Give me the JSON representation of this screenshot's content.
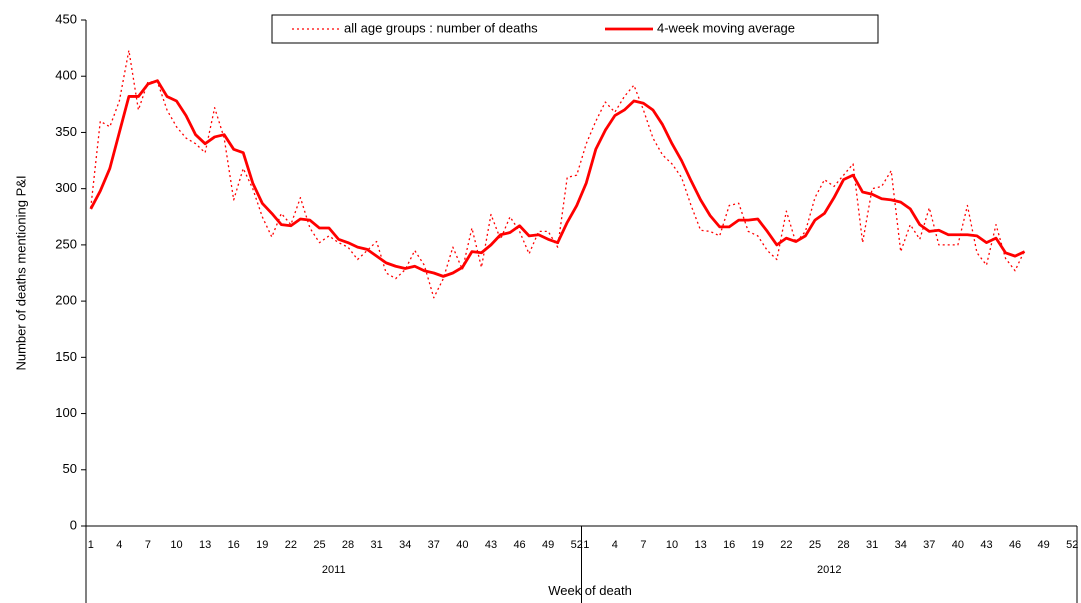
{
  "chart_data": {
    "type": "line",
    "x_label": "Week of death",
    "y_label": "Number of deaths mentioning P&I",
    "ylim": [
      0,
      450
    ],
    "yticks": [
      0,
      50,
      100,
      150,
      200,
      250,
      300,
      350,
      400,
      450
    ],
    "x_groups": [
      "2011",
      "2012"
    ],
    "categories": [
      "1",
      null,
      null,
      "4",
      null,
      null,
      "7",
      null,
      null,
      "10",
      null,
      null,
      "13",
      null,
      null,
      "16",
      null,
      null,
      "19",
      null,
      null,
      "22",
      null,
      null,
      "25",
      null,
      null,
      "28",
      null,
      null,
      "31",
      null,
      null,
      "34",
      null,
      null,
      "37",
      null,
      null,
      "40",
      null,
      null,
      "43",
      null,
      null,
      "46",
      null,
      null,
      "49",
      null,
      null,
      "52",
      "1",
      null,
      null,
      "4",
      null,
      null,
      "7",
      null,
      null,
      "10",
      null,
      null,
      "13",
      null,
      null,
      "16",
      null,
      null,
      "19",
      null,
      null,
      "22",
      null,
      null,
      "25",
      null,
      null,
      "28",
      null,
      null,
      "31",
      null,
      null,
      "34",
      null,
      null,
      "37",
      null,
      null,
      "40",
      null,
      null,
      "43",
      null,
      null,
      "46",
      null,
      null,
      "49",
      null,
      null,
      "52"
    ],
    "legend": "top",
    "series": [
      {
        "name": "all age groups : number of deaths",
        "color": "#ff0000",
        "style": "dotted",
        "values": [
          283,
          360,
          355,
          378,
          423,
          370,
          395,
          395,
          370,
          355,
          345,
          340,
          332,
          372,
          345,
          290,
          318,
          300,
          275,
          257,
          278,
          268,
          292,
          265,
          252,
          258,
          252,
          248,
          237,
          245,
          253,
          225,
          220,
          228,
          245,
          232,
          203,
          220,
          248,
          228,
          265,
          230,
          277,
          255,
          275,
          262,
          242,
          262,
          262,
          248,
          310,
          312,
          340,
          360,
          377,
          368,
          382,
          392,
          370,
          345,
          330,
          322,
          310,
          285,
          263,
          262,
          258,
          285,
          287,
          262,
          258,
          245,
          237,
          280,
          252,
          262,
          292,
          308,
          302,
          312,
          322,
          252,
          300,
          302,
          316,
          244,
          268,
          255,
          283,
          250,
          250,
          250,
          285,
          243,
          232,
          268,
          238,
          227,
          245,
          null,
          null,
          null,
          null,
          null
        ]
      },
      {
        "name": "4-week moving average",
        "color": "#ff0000",
        "style": "solid",
        "values": [
          282,
          298,
          318,
          350,
          382,
          382,
          393,
          396,
          382,
          378,
          365,
          348,
          340,
          346,
          348,
          335,
          332,
          305,
          287,
          278,
          268,
          267,
          273,
          272,
          265,
          265,
          255,
          252,
          248,
          246,
          240,
          234,
          231,
          229,
          231,
          227,
          225,
          222,
          225,
          230,
          244,
          243,
          250,
          259,
          261,
          267,
          258,
          259,
          255,
          252,
          270,
          285,
          305,
          335,
          352,
          365,
          370,
          378,
          376,
          370,
          357,
          340,
          325,
          307,
          290,
          276,
          266,
          266,
          272,
          272,
          273,
          262,
          250,
          256,
          253,
          258,
          272,
          278,
          292,
          308,
          312,
          297,
          295,
          291,
          290,
          288,
          282,
          268,
          262,
          263,
          259,
          259,
          259,
          258,
          252,
          256,
          243,
          240,
          244,
          null,
          null,
          null,
          null,
          null
        ]
      }
    ]
  }
}
